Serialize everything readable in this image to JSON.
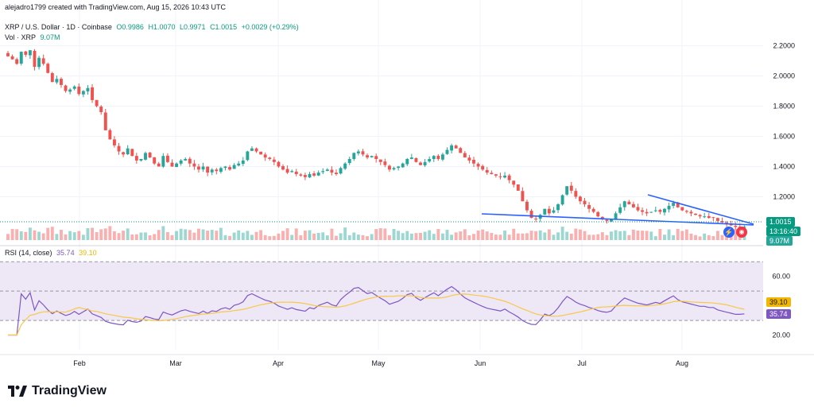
{
  "attribution": "alejadro1799 created with TradingView.com, Aug 15, 2026 10:43 UTC",
  "header": {
    "symbol": "XRP / U.S. Dollar · 1D · Coinbase",
    "open": "O0.9986",
    "high": "H1.0070",
    "low": "L0.9971",
    "close": "C1.0015",
    "change": "+0.0029 (+0.29%)",
    "vol_label": "Vol · XRP",
    "vol_value": "9.07M"
  },
  "price_axis": {
    "ticks": [
      "2.2000",
      "2.0000",
      "1.8000",
      "1.6000",
      "1.4000",
      "1.2000"
    ],
    "last_price": "1.0015",
    "countdown": "13:16:40",
    "vol_tag": "9.07M"
  },
  "rsi": {
    "label": "RSI (14, close)",
    "rsi_value": "35.74",
    "ma_value": "39.10",
    "ticks": [
      "60.00",
      "20.00"
    ]
  },
  "x_axis": {
    "months": [
      "Feb",
      "Mar",
      "Apr",
      "May",
      "Jun",
      "Jul",
      "Aug"
    ]
  },
  "brand": "TradingView",
  "colors": {
    "up": "#26a69a",
    "down": "#ef5350",
    "trendline": "#2962ff",
    "rsi_line": "#7e57c2",
    "rsi_ma": "#f7c948",
    "rsi_band": "#ede7f6",
    "last_price_bg": "#089981"
  },
  "chart_data": {
    "type": "candlestick",
    "interval": "1D",
    "ylim": [
      0.95,
      2.25
    ],
    "closes": [
      2.13,
      2.11,
      2.08,
      2.16,
      2.14,
      2.17,
      2.06,
      2.12,
      2.08,
      2.02,
      1.96,
      1.98,
      1.94,
      1.9,
      1.91,
      1.93,
      1.88,
      1.9,
      1.92,
      1.84,
      1.8,
      1.76,
      1.64,
      1.58,
      1.54,
      1.5,
      1.48,
      1.52,
      1.47,
      1.44,
      1.45,
      1.49,
      1.46,
      1.42,
      1.4,
      1.47,
      1.43,
      1.4,
      1.42,
      1.44,
      1.45,
      1.42,
      1.4,
      1.38,
      1.4,
      1.36,
      1.38,
      1.37,
      1.39,
      1.4,
      1.38,
      1.41,
      1.42,
      1.44,
      1.5,
      1.52,
      1.5,
      1.48,
      1.46,
      1.45,
      1.43,
      1.4,
      1.38,
      1.36,
      1.37,
      1.35,
      1.34,
      1.33,
      1.35,
      1.34,
      1.36,
      1.37,
      1.38,
      1.36,
      1.35,
      1.39,
      1.42,
      1.45,
      1.49,
      1.5,
      1.48,
      1.46,
      1.47,
      1.45,
      1.43,
      1.41,
      1.38,
      1.39,
      1.4,
      1.42,
      1.45,
      1.46,
      1.43,
      1.41,
      1.43,
      1.45,
      1.47,
      1.45,
      1.48,
      1.51,
      1.54,
      1.52,
      1.49,
      1.46,
      1.44,
      1.42,
      1.4,
      1.38,
      1.36,
      1.35,
      1.34,
      1.33,
      1.34,
      1.31,
      1.28,
      1.24,
      1.17,
      1.11,
      1.06,
      1.05,
      1.08,
      1.12,
      1.09,
      1.11,
      1.15,
      1.21,
      1.27,
      1.24,
      1.2,
      1.17,
      1.15,
      1.12,
      1.1,
      1.07,
      1.05,
      1.04,
      1.05,
      1.09,
      1.13,
      1.17,
      1.15,
      1.13,
      1.11,
      1.1,
      1.09,
      1.1,
      1.11,
      1.1,
      1.12,
      1.14,
      1.16,
      1.13,
      1.11,
      1.1,
      1.09,
      1.08,
      1.07,
      1.07,
      1.06,
      1.06,
      1.04,
      1.03,
      1.02,
      1.01,
      1.0,
      1.0,
      1.0015
    ],
    "rsi_ylim": [
      10,
      75
    ],
    "rsi_levels": [
      70,
      50,
      30
    ],
    "trendlines": [
      {
        "from": {
          "month": "Jun",
          "price": 1.05
        },
        "to": {
          "month": "Aug",
          "price": 0.995
        }
      },
      {
        "from": {
          "month": "Jul",
          "price": 1.17
        },
        "to": {
          "month": "Aug",
          "price": 1.0
        }
      }
    ]
  }
}
